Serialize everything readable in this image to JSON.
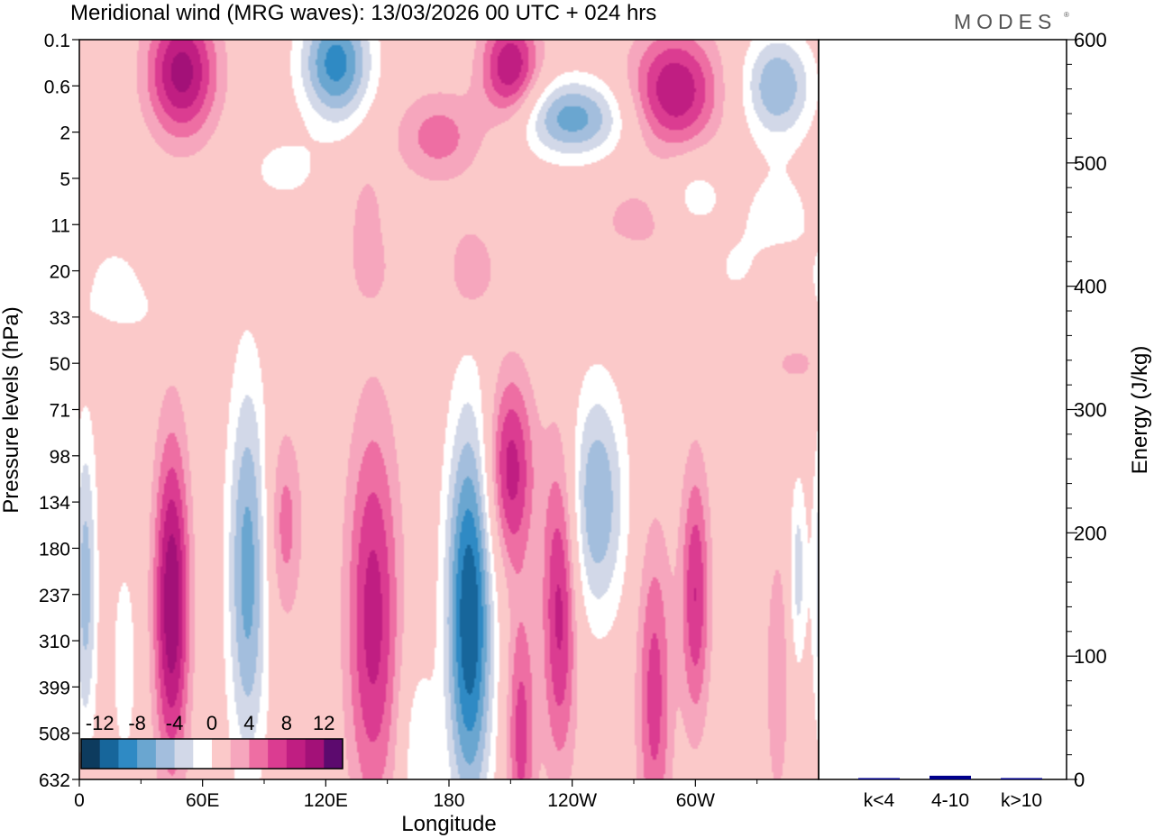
{
  "title": "Meridional wind (MRG waves):  13/03/2026  00 UTC  + 024 hrs",
  "logo": "MODES",
  "chart_data": [
    {
      "type": "heatmap",
      "name": "hovmoller-longitude-pressure",
      "xlabel": "Longitude",
      "ylabel": "Pressure levels (hPa)",
      "x_ticks": [
        "0",
        "60E",
        "120E",
        "180",
        "120W",
        "60W"
      ],
      "x_tick_values": [
        0,
        60,
        120,
        180,
        240,
        300
      ],
      "xlim": [
        0,
        360
      ],
      "y_ticks": [
        "0.1",
        "0.6",
        "2",
        "5",
        "11",
        "20",
        "33",
        "50",
        "71",
        "98",
        "134",
        "180",
        "237",
        "310",
        "399",
        "508",
        "632"
      ],
      "colorbar": {
        "labels": [
          "-12",
          "-8",
          "-4",
          "0",
          "4",
          "8",
          "12"
        ],
        "levels": [
          -14,
          -12,
          -10,
          -8,
          -6,
          -4,
          -2,
          2,
          4,
          6,
          8,
          10,
          12,
          14
        ],
        "colors": [
          "#0d3b5e",
          "#17669b",
          "#2f8ac4",
          "#6aa6d0",
          "#a3bedd",
          "#d2d8e8",
          "#ffffff",
          "#fbc9c9",
          "#f6a6bd",
          "#ee6ea3",
          "#db3c91",
          "#c01e82",
          "#a31178",
          "#5c0a6e"
        ]
      },
      "blobs": [
        {
          "x": 45,
          "y": 12.2,
          "sx": 6,
          "sy": 2.5,
          "v": 12
        },
        {
          "x": 82,
          "y": 11.5,
          "sx": 7,
          "sy": 3.0,
          "v": -9
        },
        {
          "x": 3,
          "y": 11.8,
          "sx": 4,
          "sy": 2.5,
          "v": -7
        },
        {
          "x": 22,
          "y": 13.5,
          "sx": 4,
          "sy": 1.5,
          "v": -4
        },
        {
          "x": 100,
          "y": 10.5,
          "sx": 6,
          "sy": 1.5,
          "v": 5
        },
        {
          "x": 143,
          "y": 12.5,
          "sx": 9,
          "sy": 3.0,
          "v": 9
        },
        {
          "x": 190,
          "y": 12.5,
          "sx": 8,
          "sy": 3.0,
          "v": -14
        },
        {
          "x": 210,
          "y": 9.3,
          "sx": 8,
          "sy": 1.5,
          "v": 9
        },
        {
          "x": 234,
          "y": 12.2,
          "sx": 6,
          "sy": 2.5,
          "v": 9
        },
        {
          "x": 252,
          "y": 10.0,
          "sx": 10,
          "sy": 1.8,
          "v": -8
        },
        {
          "x": 280,
          "y": 14.2,
          "sx": 6,
          "sy": 2.5,
          "v": 7
        },
        {
          "x": 300,
          "y": 12.0,
          "sx": 5,
          "sy": 2.0,
          "v": 8
        },
        {
          "x": 340,
          "y": 13.8,
          "sx": 4,
          "sy": 2.0,
          "v": 4
        },
        {
          "x": 350,
          "y": 11.5,
          "sx": 3,
          "sy": 1.5,
          "v": -5
        },
        {
          "x": 215,
          "y": 15.0,
          "sx": 5,
          "sy": 2.0,
          "v": 7
        },
        {
          "x": 165,
          "y": 15.5,
          "sx": 6,
          "sy": 1.5,
          "v": -4
        },
        {
          "x": 50,
          "y": 0.7,
          "sx": 12,
          "sy": 1.0,
          "v": 11
        },
        {
          "x": 125,
          "y": 0.5,
          "sx": 12,
          "sy": 0.9,
          "v": -11
        },
        {
          "x": 210,
          "y": 0.6,
          "sx": 10,
          "sy": 0.8,
          "v": 10
        },
        {
          "x": 240,
          "y": 1.7,
          "sx": 18,
          "sy": 0.6,
          "v": -9
        },
        {
          "x": 290,
          "y": 1.1,
          "sx": 15,
          "sy": 0.9,
          "v": 10
        },
        {
          "x": 340,
          "y": 1.0,
          "sx": 12,
          "sy": 0.8,
          "v": -8
        },
        {
          "x": 175,
          "y": 2.1,
          "sx": 15,
          "sy": 0.7,
          "v": 5
        },
        {
          "x": 100,
          "y": 2.8,
          "sx": 12,
          "sy": 0.5,
          "v": -3
        },
        {
          "x": 300,
          "y": 3.3,
          "sx": 10,
          "sy": 0.6,
          "v": -3
        },
        {
          "x": 270,
          "y": 4.0,
          "sx": 12,
          "sy": 0.6,
          "v": 3
        },
        {
          "x": 140,
          "y": 4.0,
          "sx": 6,
          "sy": 0.9,
          "v": 3
        },
        {
          "x": 190,
          "y": 5.0,
          "sx": 8,
          "sy": 0.8,
          "v": 3
        },
        {
          "x": 340,
          "y": 4.0,
          "sx": 15,
          "sy": 1.0,
          "v": -3
        },
        {
          "x": 25,
          "y": 5.7,
          "sx": 20,
          "sy": 0.6,
          "v": -2.5
        },
        {
          "x": 350,
          "y": 7.0,
          "sx": 12,
          "sy": 0.4,
          "v": 2.5
        }
      ]
    },
    {
      "type": "bar",
      "name": "energy",
      "categories": [
        "k<4",
        "4-10",
        "k>10"
      ],
      "values": [
        0.5,
        3,
        0.3
      ],
      "ylabel": "Energy (J/kg)",
      "y_ticks": [
        "0",
        "100",
        "200",
        "300",
        "400",
        "500",
        "600"
      ],
      "ylim": [
        0,
        600
      ],
      "bar_color": "#00008b"
    }
  ]
}
